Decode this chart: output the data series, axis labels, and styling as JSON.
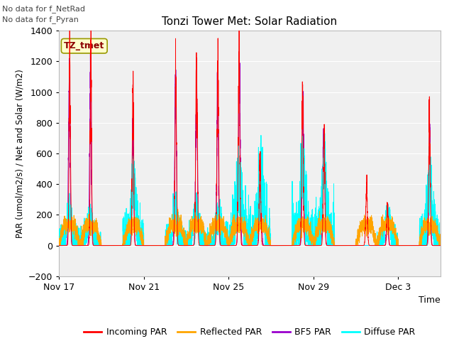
{
  "title": "Tonzi Tower Met: Solar Radiation",
  "ylabel": "PAR (umol/m2/s) / Net and Solar (W/m2)",
  "xlabel": "Time",
  "ylim": [
    -200,
    1400
  ],
  "yticks": [
    -200,
    0,
    200,
    400,
    600,
    800,
    1000,
    1200,
    1400
  ],
  "xtick_labels": [
    "Nov 17",
    "Nov 21",
    "Nov 25",
    "Nov 29",
    "Dec 3"
  ],
  "xtick_positions": [
    0,
    4,
    8,
    12,
    16
  ],
  "no_data_text1": "No data for f_NetRad",
  "no_data_text2": "No data for f_Pyran",
  "legend_label": "TZ_tmet",
  "bg_color": "#ebebeb",
  "plot_bg": "#f0f0f0",
  "colors": {
    "incoming": "#ff0000",
    "reflected": "#ffa500",
    "bf5": "#9900cc",
    "diffuse": "#00ffff"
  },
  "legend_entries": [
    "Incoming PAR",
    "Reflected PAR",
    "BF5 PAR",
    "Diffuse PAR"
  ],
  "n_days": 18,
  "day_peaks_incoming": [
    1200,
    1215,
    0,
    960,
    0,
    1105,
    1140,
    1140,
    1155,
    540,
    0,
    950,
    750,
    0,
    375,
    260,
    0,
    790
  ],
  "day_peaks_bf5": [
    1085,
    1090,
    0,
    770,
    0,
    1005,
    1010,
    1005,
    1130,
    490,
    0,
    860,
    710,
    0,
    0,
    220,
    0,
    710
  ],
  "day_peaks_reflected": [
    130,
    130,
    0,
    130,
    0,
    130,
    130,
    130,
    130,
    130,
    0,
    130,
    130,
    0,
    130,
    130,
    0,
    130
  ],
  "day_peaks_diffuse": [
    215,
    195,
    0,
    420,
    0,
    240,
    215,
    215,
    430,
    450,
    0,
    475,
    510,
    0,
    0,
    215,
    0,
    420
  ]
}
